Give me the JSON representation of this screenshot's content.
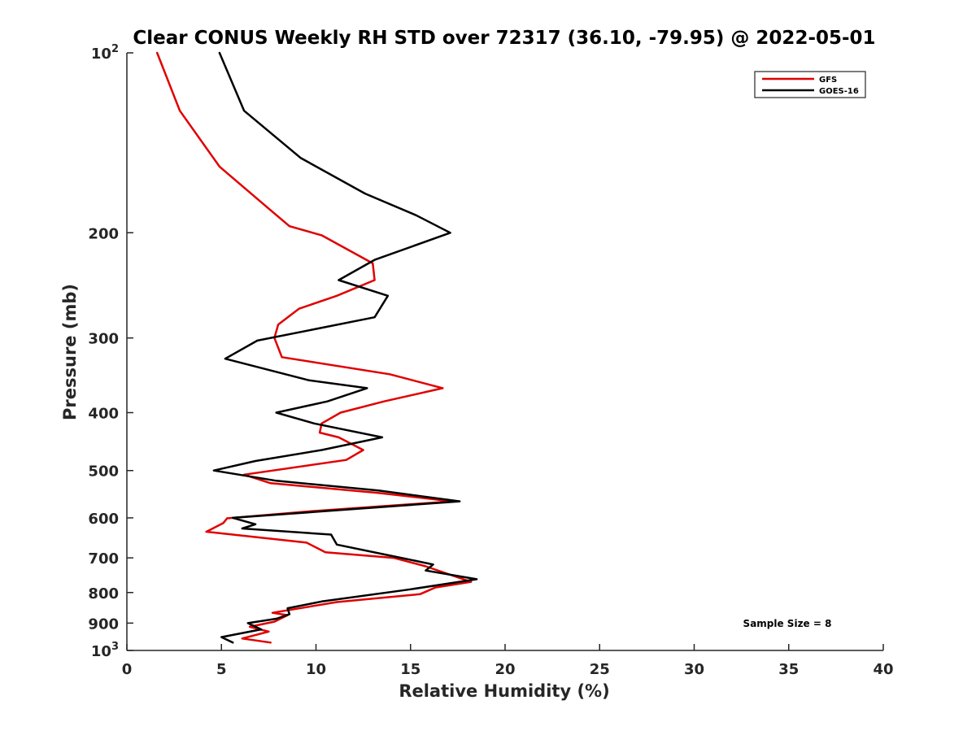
{
  "chart_data": {
    "type": "line",
    "title": "Clear CONUS Weekly RH STD over 72317 (36.10, -79.95) @ 2022-05-01",
    "xlabel": "Relative Humidity (%)",
    "ylabel": "Pressure (mb)",
    "xlim": [
      0,
      40
    ],
    "ylim": [
      100,
      1000
    ],
    "y_scale": "log",
    "y_reversed": true,
    "grid": false,
    "legend_position": "top-right",
    "x_ticks": [
      "0",
      "5",
      "10",
      "15",
      "20",
      "25",
      "30",
      "35",
      "40"
    ],
    "y_ticks": [
      {
        "value": 100,
        "base": "10",
        "exp": "2"
      },
      {
        "value": 200,
        "label": "200"
      },
      {
        "value": 300,
        "label": "300"
      },
      {
        "value": 400,
        "label": "400"
      },
      {
        "value": 500,
        "label": "500"
      },
      {
        "value": 600,
        "label": "600"
      },
      {
        "value": 700,
        "label": "700"
      },
      {
        "value": 800,
        "label": "800"
      },
      {
        "value": 900,
        "label": "900"
      },
      {
        "value": 1000,
        "base": "10",
        "exp": "3"
      }
    ],
    "annotation": "Sample Size = 8",
    "series": [
      {
        "name": "GFS",
        "color": "#e00000",
        "points": [
          [
            1.6,
            100
          ],
          [
            2.8,
            125
          ],
          [
            4.9,
            155
          ],
          [
            7.3,
            180
          ],
          [
            8.6,
            195
          ],
          [
            10.3,
            202
          ],
          [
            13.0,
            225
          ],
          [
            13.1,
            240
          ],
          [
            11.1,
            255
          ],
          [
            9.1,
            268
          ],
          [
            8.0,
            285
          ],
          [
            7.8,
            300
          ],
          [
            8.2,
            323
          ],
          [
            13.9,
            345
          ],
          [
            16.7,
            364
          ],
          [
            13.6,
            383
          ],
          [
            11.3,
            400
          ],
          [
            10.3,
            417
          ],
          [
            10.2,
            432
          ],
          [
            11.2,
            440
          ],
          [
            12.5,
            462
          ],
          [
            11.6,
            480
          ],
          [
            6.2,
            508
          ],
          [
            7.6,
            525
          ],
          [
            13.3,
            545
          ],
          [
            17.2,
            563
          ],
          [
            9.7,
            585
          ],
          [
            5.3,
            601
          ],
          [
            5.1,
            612
          ],
          [
            4.2,
            633
          ],
          [
            9.5,
            660
          ],
          [
            10.5,
            685
          ],
          [
            14.1,
            700
          ],
          [
            15.8,
            723
          ],
          [
            18.2,
            768
          ],
          [
            16.3,
            785
          ],
          [
            15.5,
            805
          ],
          [
            11.1,
            830
          ],
          [
            7.7,
            865
          ],
          [
            8.5,
            873
          ],
          [
            7.8,
            895
          ],
          [
            6.5,
            913
          ],
          [
            7.5,
            930
          ],
          [
            6.1,
            955
          ],
          [
            7.6,
            970
          ]
        ]
      },
      {
        "name": "GOES-16",
        "color": "#000000",
        "points": [
          [
            4.9,
            100
          ],
          [
            6.2,
            125
          ],
          [
            9.2,
            150
          ],
          [
            12.6,
            172
          ],
          [
            15.3,
            187
          ],
          [
            17.1,
            200
          ],
          [
            13.1,
            222
          ],
          [
            11.2,
            240
          ],
          [
            13.8,
            255
          ],
          [
            13.1,
            277
          ],
          [
            6.9,
            303
          ],
          [
            5.2,
            325
          ],
          [
            9.6,
            353
          ],
          [
            12.7,
            364
          ],
          [
            10.6,
            383
          ],
          [
            7.9,
            400
          ],
          [
            9.9,
            417
          ],
          [
            13.5,
            440
          ],
          [
            10.3,
            462
          ],
          [
            6.8,
            482
          ],
          [
            4.6,
            500
          ],
          [
            7.9,
            520
          ],
          [
            13.3,
            540
          ],
          [
            17.6,
            563
          ],
          [
            11.0,
            583
          ],
          [
            5.6,
            600
          ],
          [
            6.8,
            615
          ],
          [
            6.1,
            625
          ],
          [
            10.8,
            640
          ],
          [
            11.1,
            665
          ],
          [
            14.5,
            700
          ],
          [
            16.2,
            718
          ],
          [
            15.8,
            735
          ],
          [
            18.5,
            760
          ],
          [
            15.0,
            790
          ],
          [
            10.3,
            828
          ],
          [
            8.5,
            850
          ],
          [
            8.6,
            870
          ],
          [
            7.9,
            885
          ],
          [
            6.4,
            900
          ],
          [
            7.1,
            922
          ],
          [
            5.0,
            950
          ],
          [
            5.6,
            970
          ]
        ]
      }
    ]
  }
}
